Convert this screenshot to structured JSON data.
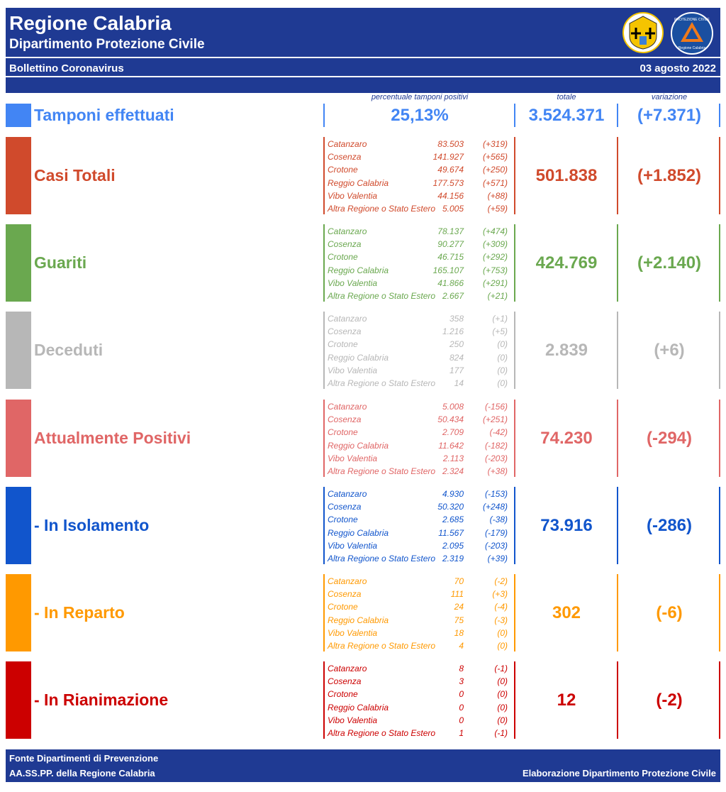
{
  "header": {
    "title": "Regione Calabria",
    "subtitle": "Dipartimento Protezione Civile",
    "bulletin": "Bollettino Coronavirus",
    "date": "03 agosto 2022",
    "logo_text": "PROTEZIONE CIVILE",
    "logo_text2": "Regione Calabria"
  },
  "columns": {
    "percent": "percentuale tamponi positivi",
    "total": "totale",
    "variation": "variazione"
  },
  "tamponi": {
    "label": "Tamponi effettuati",
    "percent": "25,13%",
    "total": "3.524.371",
    "variation": "(+7.371)",
    "color": "#4285f4"
  },
  "categories": [
    {
      "id": "casi-totali",
      "label": "Casi Totali",
      "color": "#d04a2c",
      "total": "501.838",
      "variation": "(+1.852)",
      "districts": [
        {
          "name": "Catanzaro",
          "value": "83.503",
          "delta": "(+319)"
        },
        {
          "name": "Cosenza",
          "value": "141.927",
          "delta": "(+565)"
        },
        {
          "name": "Crotone",
          "value": "49.674",
          "delta": "(+250)"
        },
        {
          "name": "Reggio Calabria",
          "value": "177.573",
          "delta": "(+571)"
        },
        {
          "name": "Vibo Valentia",
          "value": "44.156",
          "delta": "(+88)"
        },
        {
          "name": "Altra Regione o Stato Estero",
          "value": "5.005",
          "delta": "(+59)"
        }
      ]
    },
    {
      "id": "guariti",
      "label": "Guariti",
      "color": "#6aa84f",
      "total": "424.769",
      "variation": "(+2.140)",
      "districts": [
        {
          "name": "Catanzaro",
          "value": "78.137",
          "delta": "(+474)"
        },
        {
          "name": "Cosenza",
          "value": "90.277",
          "delta": "(+309)"
        },
        {
          "name": "Crotone",
          "value": "46.715",
          "delta": "(+292)"
        },
        {
          "name": "Reggio Calabria",
          "value": "165.107",
          "delta": "(+753)"
        },
        {
          "name": "Vibo Valentia",
          "value": "41.866",
          "delta": "(+291)"
        },
        {
          "name": "Altra Regione o Stato Estero",
          "value": "2.667",
          "delta": "(+21)"
        }
      ]
    },
    {
      "id": "deceduti",
      "label": "Deceduti",
      "color": "#b7b7b7",
      "total": "2.839",
      "variation": "(+6)",
      "districts": [
        {
          "name": "Catanzaro",
          "value": "358",
          "delta": "(+1)"
        },
        {
          "name": "Cosenza",
          "value": "1.216",
          "delta": "(+5)"
        },
        {
          "name": "Crotone",
          "value": "250",
          "delta": "(0)"
        },
        {
          "name": "Reggio Calabria",
          "value": "824",
          "delta": "(0)"
        },
        {
          "name": "Vibo Valentia",
          "value": "177",
          "delta": "(0)"
        },
        {
          "name": "Altra Regione o Stato Estero",
          "value": "14",
          "delta": "(0)"
        }
      ]
    },
    {
      "id": "attualmente-positivi",
      "label": "Attualmente Positivi",
      "color": "#e06666",
      "total": "74.230",
      "variation": "(-294)",
      "districts": [
        {
          "name": "Catanzaro",
          "value": "5.008",
          "delta": "(-156)"
        },
        {
          "name": "Cosenza",
          "value": "50.434",
          "delta": "(+251)"
        },
        {
          "name": "Crotone",
          "value": "2.709",
          "delta": "(-42)"
        },
        {
          "name": "Reggio Calabria",
          "value": "11.642",
          "delta": "(-182)"
        },
        {
          "name": "Vibo Valentia",
          "value": "2.113",
          "delta": "(-203)"
        },
        {
          "name": "Altra Regione o Stato Estero",
          "value": "2.324",
          "delta": "(+38)"
        }
      ]
    },
    {
      "id": "in-isolamento",
      "label": " - In Isolamento",
      "color": "#1155cc",
      "total": "73.916",
      "variation": "(-286)",
      "districts": [
        {
          "name": "Catanzaro",
          "value": "4.930",
          "delta": "(-153)"
        },
        {
          "name": "Cosenza",
          "value": "50.320",
          "delta": "(+248)"
        },
        {
          "name": "Crotone",
          "value": "2.685",
          "delta": "(-38)"
        },
        {
          "name": "Reggio Calabria",
          "value": "11.567",
          "delta": "(-179)"
        },
        {
          "name": "Vibo Valentia",
          "value": "2.095",
          "delta": "(-203)"
        },
        {
          "name": "Altra Regione o Stato Estero",
          "value": "2.319",
          "delta": "(+39)"
        }
      ]
    },
    {
      "id": "in-reparto",
      "label": " - In Reparto",
      "color": "#ff9900",
      "total": "302",
      "variation": "(-6)",
      "districts": [
        {
          "name": "Catanzaro",
          "value": "70",
          "delta": "(-2)"
        },
        {
          "name": "Cosenza",
          "value": "111",
          "delta": "(+3)"
        },
        {
          "name": "Crotone",
          "value": "24",
          "delta": "(-4)"
        },
        {
          "name": "Reggio Calabria",
          "value": "75",
          "delta": "(-3)"
        },
        {
          "name": "Vibo Valentia",
          "value": "18",
          "delta": "(0)"
        },
        {
          "name": "Altra Regione o Stato Estero",
          "value": "4",
          "delta": "(0)"
        }
      ]
    },
    {
      "id": "in-rianimazione",
      "label": " - In Rianimazione",
      "color": "#cc0000",
      "total": "12",
      "variation": "(-2)",
      "districts": [
        {
          "name": "Catanzaro",
          "value": "8",
          "delta": "(-1)"
        },
        {
          "name": "Cosenza",
          "value": "3",
          "delta": "(0)"
        },
        {
          "name": "Crotone",
          "value": "0",
          "delta": "(0)"
        },
        {
          "name": "Reggio Calabria",
          "value": "0",
          "delta": "(0)"
        },
        {
          "name": "Vibo Valentia",
          "value": "0",
          "delta": "(0)"
        },
        {
          "name": "Altra Regione o Stato Estero",
          "value": "1",
          "delta": "(-1)"
        }
      ]
    }
  ],
  "footer": {
    "source_line1": "Fonte Dipartimenti di Prevenzione",
    "source_line2": "AA.SS.PP.  della Regione Calabria",
    "elaboration": "Elaborazione Dipartimento Protezione Civile"
  }
}
